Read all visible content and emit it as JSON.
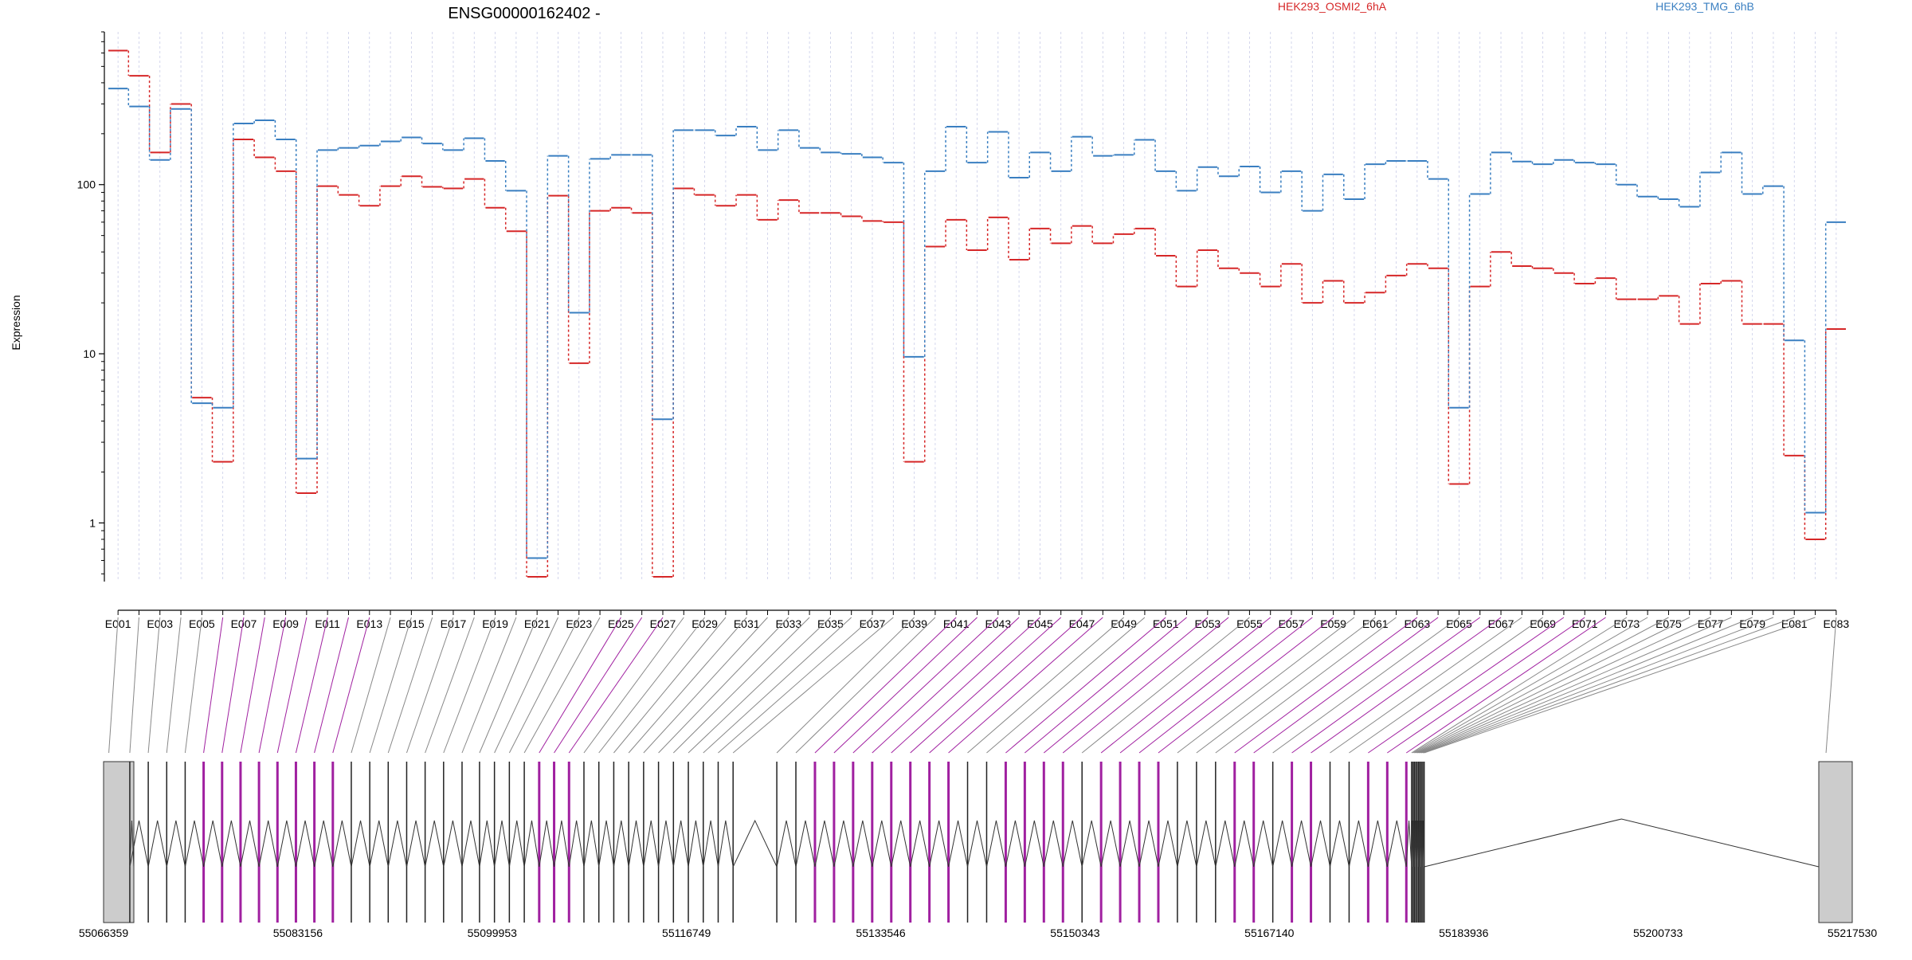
{
  "chart_data": {
    "type": "line",
    "title": "ENSG00000162402 -",
    "ylabel": "Expression",
    "y_scale": "log",
    "ylim": [
      0.45,
      800
    ],
    "y_ticks": [
      1,
      10,
      100
    ],
    "y_tick_labels": [
      "1",
      "10",
      "100"
    ],
    "categories": [
      "E001",
      "E002",
      "E003",
      "E004",
      "E005",
      "E006",
      "E007",
      "E008",
      "E009",
      "E010",
      "E011",
      "E012",
      "E013",
      "E014",
      "E015",
      "E016",
      "E017",
      "E018",
      "E019",
      "E020",
      "E021",
      "E022",
      "E023",
      "E024",
      "E025",
      "E026",
      "E027",
      "E028",
      "E029",
      "E030",
      "E031",
      "E032",
      "E033",
      "E034",
      "E035",
      "E036",
      "E037",
      "E038",
      "E039",
      "E040",
      "E041",
      "E042",
      "E043",
      "E044",
      "E045",
      "E046",
      "E047",
      "E048",
      "E049",
      "E050",
      "E051",
      "E052",
      "E053",
      "E054",
      "E055",
      "E056",
      "E057",
      "E058",
      "E059",
      "E060",
      "E061",
      "E062",
      "E063",
      "E064",
      "E065",
      "E066",
      "E067",
      "E068",
      "E069",
      "E070",
      "E071",
      "E072",
      "E073",
      "E074",
      "E075",
      "E076",
      "E077",
      "E078",
      "E079",
      "E080",
      "E081",
      "E082",
      "E083"
    ],
    "x_tick_labels": [
      "E001",
      "E003",
      "E005",
      "E007",
      "E009",
      "E011",
      "E013",
      "E015",
      "E017",
      "E019",
      "E021",
      "E023",
      "E025",
      "E027",
      "E029",
      "E031",
      "E033",
      "E035",
      "E037",
      "E039",
      "E041",
      "E043",
      "E045",
      "E047",
      "E049",
      "E051",
      "E053",
      "E055",
      "E057",
      "E059",
      "E061",
      "E063",
      "E065",
      "E067",
      "E069",
      "E071",
      "E073",
      "E075",
      "E077",
      "E079",
      "E081",
      "E083"
    ],
    "series": [
      {
        "name": "HEK293_OSMI2_6hA",
        "color": "#d62728",
        "values": [
          620,
          440,
          155,
          300,
          5.5,
          2.3,
          185,
          145,
          120,
          1.5,
          98,
          87,
          75,
          98,
          112,
          97,
          95,
          108,
          73,
          53,
          0.48,
          86,
          8.8,
          70,
          73,
          68,
          0.48,
          95,
          87,
          75,
          87,
          62,
          81,
          68,
          68,
          65,
          61,
          60,
          2.3,
          43,
          62,
          41,
          64,
          36,
          55,
          45,
          57,
          45,
          51,
          55,
          38,
          25,
          41,
          32,
          30,
          25,
          34,
          20,
          27,
          20,
          23,
          29,
          34,
          32,
          1.7,
          25,
          40,
          33,
          32,
          30,
          26,
          28,
          21,
          21,
          22,
          15,
          26,
          27,
          15,
          15,
          2.5,
          0.8,
          14
        ]
      },
      {
        "name": "HEK293_TMG_6hB",
        "color": "#3a7fc1",
        "values": [
          370,
          290,
          140,
          280,
          5.1,
          4.8,
          230,
          240,
          185,
          2.4,
          160,
          165,
          170,
          180,
          190,
          175,
          160,
          188,
          138,
          92,
          0.62,
          148,
          17.5,
          142,
          150,
          150,
          4.1,
          210,
          210,
          195,
          220,
          160,
          210,
          165,
          155,
          152,
          145,
          135,
          9.6,
          120,
          220,
          135,
          205,
          110,
          155,
          120,
          192,
          148,
          150,
          184,
          120,
          92,
          127,
          112,
          128,
          90,
          120,
          70,
          115,
          82,
          132,
          138,
          138,
          108,
          4.8,
          88,
          155,
          137,
          132,
          140,
          135,
          132,
          100,
          85,
          82,
          74,
          118,
          155,
          88,
          98,
          12,
          1.15,
          60
        ]
      }
    ],
    "legend": [
      {
        "label": "HEK293_OSMI2_6hA",
        "color": "#d62728"
      },
      {
        "label": "HEK293_TMG_6hB",
        "color": "#3a7fc1"
      }
    ],
    "legend_position": "top",
    "grid": "vertical-lines",
    "gene_model": {
      "coordinate_labels": [
        "55066359",
        "55083156",
        "55099953",
        "55116749",
        "55133546",
        "55150343",
        "55167140",
        "55183936",
        "55200733",
        "55217530"
      ],
      "highlight_color": "#a020a0"
    }
  }
}
